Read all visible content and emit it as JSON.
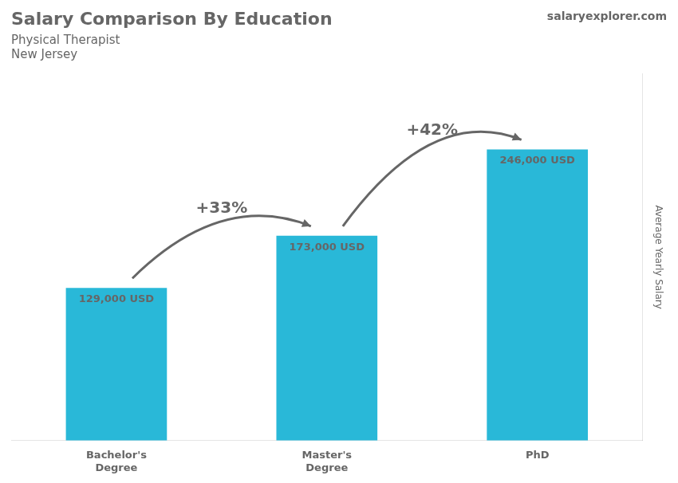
{
  "chart_data": {
    "type": "bar",
    "title": "Salary Comparison By Education",
    "subtitle": [
      "Physical Therapist",
      "New Jersey"
    ],
    "categories": [
      "Bachelor's\nDegree",
      "Master's\nDegree",
      "PhD"
    ],
    "values": [
      129000,
      173000,
      246000
    ],
    "value_labels": [
      "129,000 USD",
      "173,000 USD",
      "246,000 USD"
    ],
    "data_labels": true,
    "color": "#29B8D8",
    "ylabel": "Average Yearly Salary",
    "ylim": [
      0,
      310000
    ],
    "yticks": [],
    "tick_labels": "x",
    "grid": false,
    "annotations": [
      "+33%",
      "+42%",
      "salaryexplorer.com"
    ]
  }
}
